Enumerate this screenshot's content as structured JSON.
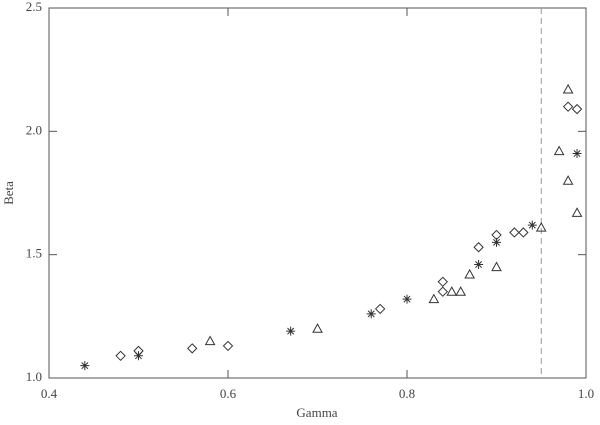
{
  "chart_data": {
    "type": "scatter",
    "x_label": "Gamma",
    "y_label": "Beta",
    "xlim": [
      0.4,
      1.0
    ],
    "ylim": [
      1.0,
      2.5
    ],
    "xticks": [
      0.4,
      0.6,
      0.8,
      {
        "value": 1,
        "label": "1.0"
      }
    ],
    "yticks": [
      {
        "value": 1,
        "label": "1.0"
      },
      1.5,
      {
        "value": 2,
        "label": "2.0"
      },
      2.5
    ],
    "vline": 0.95,
    "color": "#333333",
    "series": [
      {
        "marker": "asterisk",
        "x": [
          0.44,
          0.5,
          0.67,
          0.76,
          0.8,
          0.88,
          0.9,
          0.94,
          0.99
        ],
        "values": [
          1.05,
          1.09,
          1.19,
          1.26,
          1.32,
          1.46,
          1.55,
          1.62,
          1.91
        ]
      },
      {
        "marker": "diamond",
        "x": [
          0.48,
          0.5,
          0.56,
          0.6,
          0.77,
          0.84,
          0.84,
          0.88,
          0.9,
          0.92,
          0.93,
          0.98,
          0.99
        ],
        "values": [
          1.09,
          1.11,
          1.12,
          1.13,
          1.28,
          1.39,
          1.35,
          1.53,
          1.58,
          1.59,
          1.59,
          2.1,
          2.09
        ]
      },
      {
        "marker": "triangle",
        "x": [
          0.58,
          0.7,
          0.83,
          0.85,
          0.86,
          0.87,
          0.9,
          0.95,
          0.97,
          0.98,
          0.98,
          0.99
        ],
        "values": [
          1.15,
          1.2,
          1.32,
          1.35,
          1.35,
          1.42,
          1.45,
          1.61,
          1.92,
          1.8,
          2.17,
          1.67
        ]
      }
    ]
  }
}
